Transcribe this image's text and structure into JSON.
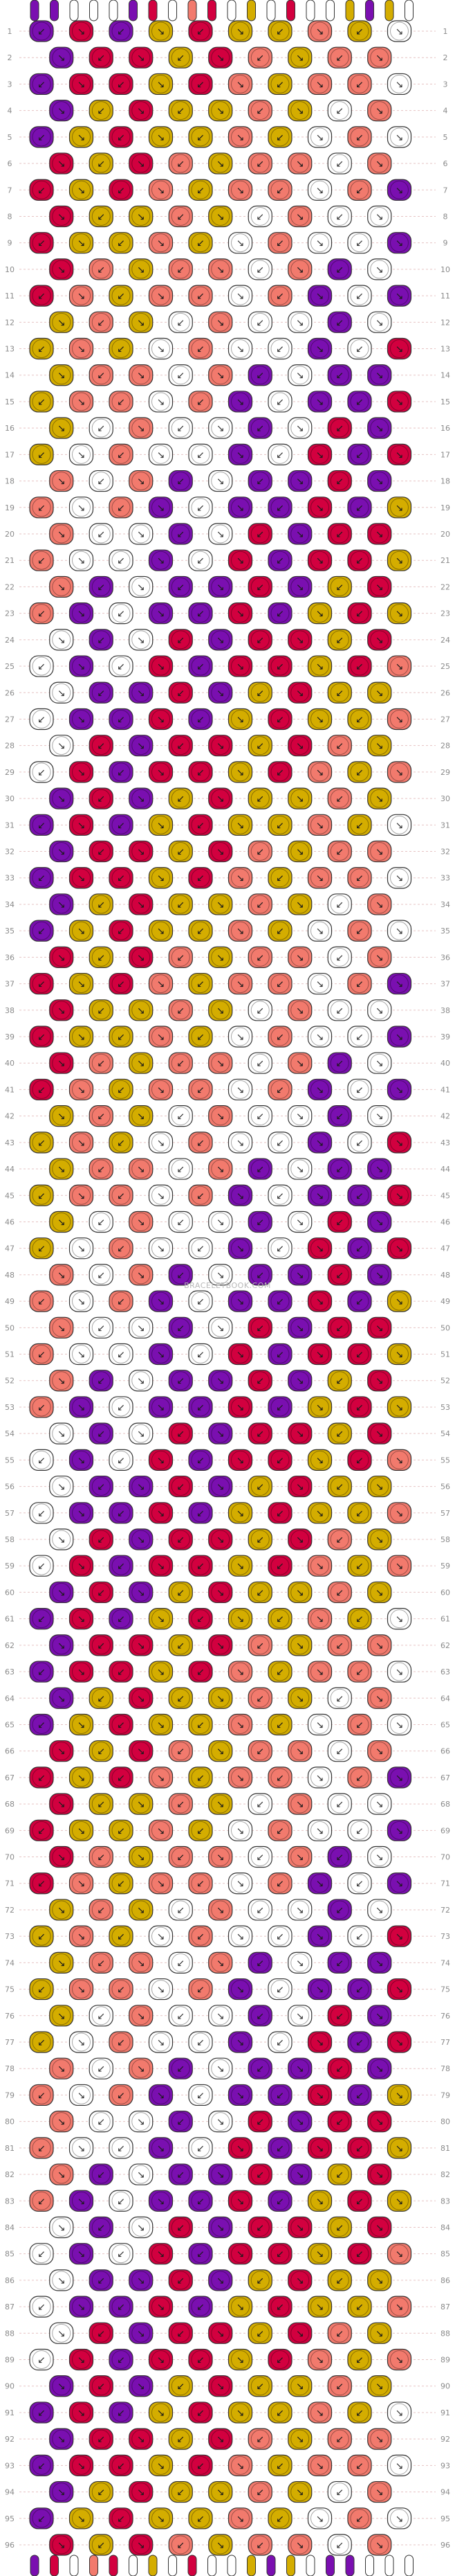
{
  "pattern": {
    "total_rows": 96,
    "knots_per_odd_row": 10,
    "knots_per_even_row": 9,
    "strings_top": [
      "#7a0fb0",
      "#7a0fb0",
      "#ffffff",
      "#ffffff",
      "#ffffff",
      "#7a0fb0",
      "#d2003f",
      "#ffffff",
      "#f27a6d",
      "#d2003f",
      "#ffffff",
      "#d4ad00",
      "#ffffff",
      "#d2003f",
      "#ffffff",
      "#ffffff",
      "#d4ad00",
      "#7a0fb0",
      "#d4ad00",
      "#ffffff"
    ]
  },
  "palette": {
    "purple": "#7a0fb0",
    "magenta": "#d2003f",
    "yellow": "#d4ad00",
    "salmon": "#f27a6d",
    "white": "#ffffff",
    "outline": "#333333",
    "guide": "#e6c3c3"
  },
  "watermark": "BRACELETBOOK.COM"
}
